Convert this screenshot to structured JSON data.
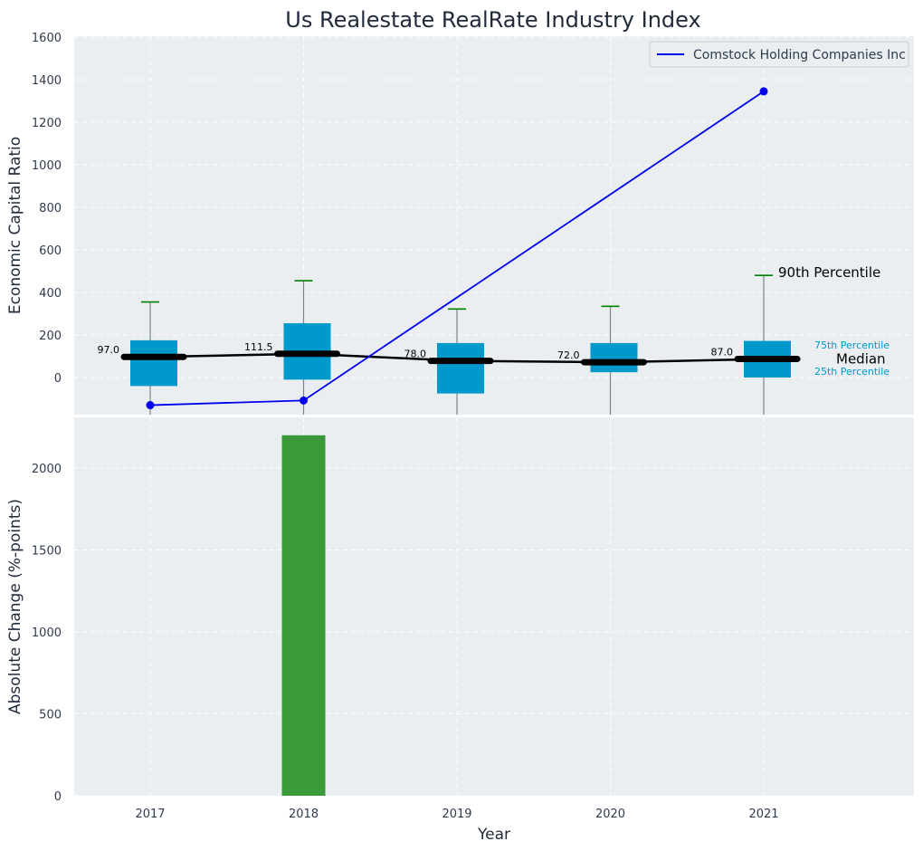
{
  "chart_data": [
    {
      "type": "box",
      "title": "Us Realestate RealRate Industry Index",
      "ylabel": "Economic Capital Ratio",
      "ylim": [
        -170,
        1600
      ],
      "yticks": [
        0,
        200,
        400,
        600,
        800,
        1000,
        1200,
        1400,
        1600
      ],
      "categories": [
        "2017",
        "2018",
        "2019",
        "2020",
        "2021"
      ],
      "grid": true,
      "legend": {
        "position": "top-right",
        "entries": [
          "Comstock Holding Companies Inc"
        ]
      },
      "colors": {
        "box": "#0099cc",
        "median": "#000000",
        "whisker_cap": "#008000",
        "company": "#0000ee"
      },
      "boxes": [
        {
          "year": "2017",
          "p25": -40,
          "median": 97,
          "p75": 175,
          "p90": 355,
          "median_label": "97.0"
        },
        {
          "year": "2018",
          "p25": -10,
          "median": 111.5,
          "p75": 255,
          "p90": 455,
          "median_label": "111.5"
        },
        {
          "year": "2019",
          "p25": -75,
          "median": 78,
          "p75": 162,
          "p90": 322,
          "median_label": "78.0"
        },
        {
          "year": "2020",
          "p25": 25,
          "median": 72,
          "p75": 162,
          "p90": 335,
          "median_label": "72.0"
        },
        {
          "year": "2021",
          "p25": 0,
          "median": 87,
          "p75": 172,
          "p90": 480,
          "median_label": "87.0"
        }
      ],
      "series": [
        {
          "name": "Comstock Holding Companies Inc",
          "x": [
            "2017",
            "2018",
            "2021"
          ],
          "values": [
            -130,
            -108,
            1345
          ]
        }
      ],
      "annotations": {
        "p90": "90th Percentile",
        "p75": "75th Percentile",
        "median": "Median",
        "p25": "25th Percentile"
      }
    },
    {
      "type": "bar",
      "xlabel": "Year",
      "ylabel": "Absolute Change (%-points)",
      "ylim": [
        0,
        2300
      ],
      "yticks": [
        0,
        500,
        1000,
        1500,
        2000
      ],
      "categories": [
        "2017",
        "2018",
        "2019",
        "2020",
        "2021"
      ],
      "values": [
        null,
        2200,
        null,
        null,
        null
      ],
      "color": "#3a9a3a",
      "grid": true
    }
  ]
}
